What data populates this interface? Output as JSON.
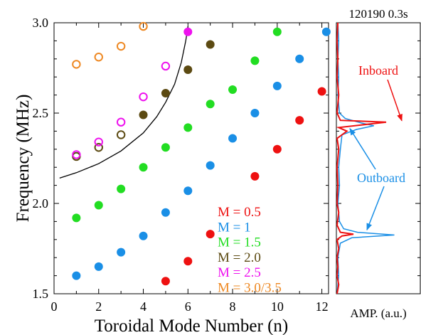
{
  "colors": {
    "red": "#ee1111",
    "blue": "#1a8fe6",
    "green": "#22dd22",
    "brown": "#5c4a12",
    "magenta": "#ee11ee",
    "orange": "#ee8822",
    "axis": "#000000"
  },
  "chart_data": [
    {
      "type": "scatter",
      "xlabel": "Toroidal Mode Number (n)",
      "ylabel": "Frequency (MHz)",
      "xlim": [
        0,
        12.3
      ],
      "ylim": [
        1.5,
        3.0
      ],
      "x_ticks": [
        "0",
        "2",
        "4",
        "6",
        "8",
        "10",
        "12"
      ],
      "y_ticks": [
        "1.5",
        "2.0",
        "2.5",
        "3.0"
      ],
      "legend_position": "bottom-right",
      "series": [
        {
          "name": "M = 0.5",
          "color": "red",
          "marker": "filled",
          "points": [
            [
              5,
              1.57
            ],
            [
              6,
              1.68
            ],
            [
              7,
              1.83
            ],
            [
              9,
              2.15
            ],
            [
              10,
              2.3
            ],
            [
              11,
              2.46
            ],
            [
              12,
              2.62
            ]
          ]
        },
        {
          "name": "M = 1",
          "color": "blue",
          "marker": "filled",
          "points": [
            [
              1,
              1.6
            ],
            [
              2,
              1.65
            ],
            [
              3,
              1.73
            ],
            [
              4,
              1.82
            ],
            [
              5,
              1.95
            ],
            [
              6,
              2.07
            ],
            [
              7,
              2.21
            ],
            [
              8,
              2.36
            ],
            [
              9,
              2.5
            ],
            [
              10,
              2.65
            ],
            [
              11,
              2.8
            ],
            [
              12.2,
              2.95
            ]
          ]
        },
        {
          "name": "M = 1.5",
          "color": "green",
          "marker": "filled",
          "points": [
            [
              1,
              1.92
            ],
            [
              2,
              1.99
            ],
            [
              3,
              2.08
            ],
            [
              4,
              2.2
            ],
            [
              5,
              2.31
            ],
            [
              6,
              2.42
            ],
            [
              7,
              2.55
            ],
            [
              8,
              2.63
            ],
            [
              9,
              2.79
            ],
            [
              10,
              2.95
            ]
          ]
        },
        {
          "name": "M = 2.0",
          "color": "brown",
          "marker": "mixed",
          "points": [
            [
              1,
              2.26,
              "open"
            ],
            [
              2,
              2.31,
              "open"
            ],
            [
              3,
              2.38,
              "open"
            ],
            [
              4,
              2.49,
              "filled"
            ],
            [
              5,
              2.61,
              "filled"
            ],
            [
              6,
              2.74,
              "filled"
            ],
            [
              7,
              2.88,
              "filled"
            ]
          ]
        },
        {
          "name": "M = 2.5",
          "color": "magenta",
          "marker": "mixed",
          "points": [
            [
              1,
              2.27,
              "open"
            ],
            [
              2,
              2.34,
              "open"
            ],
            [
              3,
              2.45,
              "open"
            ],
            [
              4,
              2.59,
              "open"
            ],
            [
              5,
              2.76,
              "open"
            ],
            [
              6,
              2.95,
              "filled"
            ]
          ]
        },
        {
          "name": "M = 3.0/3.5",
          "color": "orange",
          "marker": "open",
          "points": [
            [
              1,
              2.77
            ],
            [
              2,
              2.81
            ],
            [
              3,
              2.87
            ],
            [
              4,
              2.98
            ]
          ]
        }
      ],
      "curve": [
        [
          0.25,
          2.14
        ],
        [
          1,
          2.17
        ],
        [
          2,
          2.22
        ],
        [
          3,
          2.29
        ],
        [
          4,
          2.39
        ],
        [
          4.6,
          2.48
        ],
        [
          5,
          2.56
        ],
        [
          5.4,
          2.66
        ],
        [
          5.7,
          2.78
        ],
        [
          5.9,
          2.9
        ],
        [
          6.0,
          2.98
        ]
      ]
    },
    {
      "type": "line",
      "title": "120190  0.3s",
      "xlabel": "AMP. (a.u.)",
      "ylim": [
        1.5,
        3.0
      ],
      "annotations": [
        {
          "text": "Inboard",
          "color": "red",
          "target_y": 2.45
        },
        {
          "text": "Outboard",
          "color": "blue",
          "target_y": [
            2.43,
            1.83
          ]
        }
      ],
      "series": [
        {
          "name": "Inboard",
          "color": "red",
          "points": [
            [
              0,
              1.5
            ],
            [
              2,
              1.55
            ],
            [
              0,
              1.6
            ],
            [
              1,
              1.65
            ],
            [
              0,
              1.7
            ],
            [
              2,
              1.75
            ],
            [
              0,
              1.8
            ],
            [
              6,
              1.82
            ],
            [
              20,
              1.83
            ],
            [
              4,
              1.84
            ],
            [
              0,
              1.88
            ],
            [
              2,
              1.95
            ],
            [
              0,
              2.0
            ],
            [
              1,
              2.1
            ],
            [
              0,
              2.2
            ],
            [
              2,
              2.3
            ],
            [
              0,
              2.36
            ],
            [
              12,
              2.4
            ],
            [
              2,
              2.42
            ],
            [
              60,
              2.45
            ],
            [
              4,
              2.46
            ],
            [
              0,
              2.5
            ],
            [
              2,
              2.6
            ],
            [
              0,
              2.7
            ],
            [
              1,
              2.8
            ],
            [
              0,
              2.9
            ],
            [
              1,
              3.0
            ]
          ]
        },
        {
          "name": "Outboard",
          "color": "blue",
          "points": [
            [
              0,
              1.5
            ],
            [
              2,
              1.6
            ],
            [
              1,
              1.7
            ],
            [
              4,
              1.78
            ],
            [
              18,
              1.81
            ],
            [
              70,
              1.825
            ],
            [
              25,
              1.84
            ],
            [
              8,
              1.86
            ],
            [
              3,
              1.9
            ],
            [
              1,
              2.0
            ],
            [
              3,
              2.1
            ],
            [
              2,
              2.2
            ],
            [
              4,
              2.3
            ],
            [
              6,
              2.38
            ],
            [
              24,
              2.41
            ],
            [
              45,
              2.43
            ],
            [
              30,
              2.445
            ],
            [
              10,
              2.47
            ],
            [
              3,
              2.5
            ],
            [
              1,
              2.6
            ],
            [
              2,
              2.7
            ],
            [
              1,
              2.8
            ],
            [
              2,
              2.9
            ],
            [
              1,
              3.0
            ]
          ]
        }
      ]
    }
  ]
}
